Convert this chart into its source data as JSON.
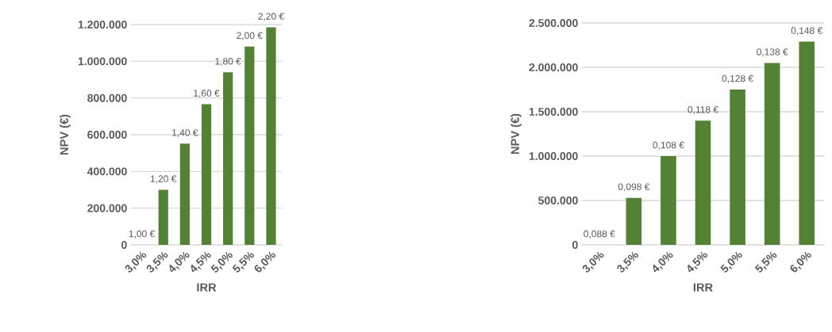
{
  "chart_data": [
    {
      "type": "bar",
      "xlabel": "IRR",
      "ylabel": "NPV (€)",
      "categories": [
        "3,0%",
        "3,5%",
        "4,0%",
        "4,5%",
        "5,0%",
        "5,5%",
        "6,0%"
      ],
      "values": [
        0,
        300000,
        551000,
        766000,
        940000,
        1080000,
        1185000
      ],
      "color": "#548235",
      "ylim": [
        0,
        1200000
      ],
      "yticks": [
        {
          "value": 0,
          "label": "0"
        },
        {
          "value": 200000,
          "label": "200.000"
        },
        {
          "value": 400000,
          "label": "400.000"
        },
        {
          "value": 600000,
          "label": "600.000"
        },
        {
          "value": 800000,
          "label": "800.000"
        },
        {
          "value": 1000000,
          "label": "1.000.000"
        },
        {
          "value": 1200000,
          "label": "1.200.000"
        }
      ],
      "grid": "y",
      "annotations": [
        {
          "text": "1,00 €",
          "x": "3,0%",
          "y": 0
        },
        {
          "text": "1,20 €",
          "x": "3,5%",
          "y": 300000
        },
        {
          "text": "1,40 €",
          "x": "4,0%",
          "y": 551000
        },
        {
          "text": "1,60 €",
          "x": "4,5%",
          "y": 766000
        },
        {
          "text": "1,80 €",
          "x": "5,0%",
          "y": 940000
        },
        {
          "text": "2,00 €",
          "x": "5,5%",
          "y": 1080000
        },
        {
          "text": "2,20 €",
          "x": "6,0%",
          "y": 1185000
        }
      ]
    },
    {
      "type": "bar",
      "xlabel": "IRR",
      "ylabel": "NPV (€)",
      "categories": [
        "3,0%",
        "3,5%",
        "4,0%",
        "4,5%",
        "5,0%",
        "5,5%",
        "6,0%"
      ],
      "values": [
        0,
        530000,
        1000000,
        1400000,
        1750000,
        2050000,
        2290000
      ],
      "color": "#548235",
      "ylim": [
        0,
        2500000
      ],
      "yticks": [
        {
          "value": 0,
          "label": "0"
        },
        {
          "value": 500000,
          "label": "500.000"
        },
        {
          "value": 1000000,
          "label": "1.000.000"
        },
        {
          "value": 1500000,
          "label": "1.500.000"
        },
        {
          "value": 2000000,
          "label": "2.000.000"
        },
        {
          "value": 2500000,
          "label": "2.500.000"
        }
      ],
      "grid": "y",
      "annotations": [
        {
          "text": "0,088 €",
          "x": "3,0%",
          "y": 0
        },
        {
          "text": "0,098 €",
          "x": "3,5%",
          "y": 530000
        },
        {
          "text": "0,108 €",
          "x": "4,0%",
          "y": 1000000
        },
        {
          "text": "0,118 €",
          "x": "4,5%",
          "y": 1400000
        },
        {
          "text": "0,128 €",
          "x": "5,0%",
          "y": 1750000
        },
        {
          "text": "0,138 €",
          "x": "5,5%",
          "y": 2050000
        },
        {
          "text": "0,148 €",
          "x": "6,0%",
          "y": 2290000
        }
      ]
    }
  ]
}
